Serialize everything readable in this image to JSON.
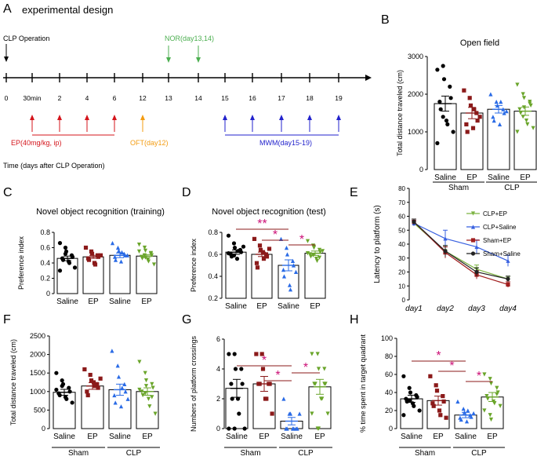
{
  "colors": {
    "red": "#d4141b",
    "orange": "#f39c12",
    "green_arrow": "#4caf50",
    "blue": "#2222cc",
    "maroon": "#8b1a1a",
    "black": "#000000",
    "tri_blue": "#2a6be6",
    "tri_green": "#6aa52b",
    "star": "#cc1177",
    "line_blue": "#3860e0",
    "line_green": "#7cb342",
    "line_red": "#a11f1f",
    "line_black": "#222222"
  },
  "panels": {
    "A": {
      "letter": "A",
      "title": "experimental design",
      "clp_label": "CLP Operation",
      "nor_label": "NOR(day13,14)",
      "ep_label": "EP(40mg/kg, ip)",
      "oft_label": "OFT(day12)",
      "mwm_label": "MWM(day15-19)",
      "axis_note": "Time (days after CLP Operation)",
      "ticks": [
        "0",
        "30min",
        "2",
        "4",
        "6",
        "12",
        "13",
        "14",
        "15",
        "16",
        "17",
        "18",
        "19"
      ],
      "ep_ticks": [
        "30min",
        "2",
        "4",
        "6"
      ],
      "oft_ticks": [
        "12"
      ],
      "nor_ticks": [
        "13",
        "14"
      ],
      "mwm_ticks": [
        "15",
        "16",
        "17",
        "18",
        "19"
      ]
    },
    "B": {
      "letter": "B"
    },
    "C": {
      "letter": "C"
    },
    "D": {
      "letter": "D"
    },
    "E": {
      "letter": "E"
    },
    "F": {
      "letter": "F"
    },
    "G": {
      "letter": "G"
    },
    "H": {
      "letter": "H"
    }
  },
  "chart_data": [
    {
      "panel": "B",
      "type": "bar",
      "title": "Open field",
      "ylabel": "Total distance traveled (cm)",
      "ylim": [
        0,
        3000
      ],
      "yticks": [
        0,
        1000,
        2000,
        3000
      ],
      "categories": [
        "Saline",
        "EP",
        "Saline",
        "EP"
      ],
      "groups": [
        "Sham",
        "CLP"
      ],
      "values": [
        1750,
        1500,
        1600,
        1550
      ],
      "errors": [
        200,
        150,
        100,
        110
      ],
      "points": [
        [
          2650,
          2750,
          2400,
          2200,
          1900,
          1800,
          1600,
          1300,
          1200,
          1000,
          700,
          1400
        ],
        [
          2100,
          1900,
          1700,
          1500,
          1300,
          1200,
          1000,
          1100,
          1600,
          1400
        ],
        [
          2000,
          1800,
          1700,
          1600,
          1500,
          1400,
          1300,
          1200,
          1800,
          1550
        ],
        [
          2250,
          2000,
          1900,
          1800,
          1700,
          1600,
          1500,
          1300,
          1200,
          1100,
          1000,
          1400,
          1650,
          1750
        ]
      ]
    },
    {
      "panel": "C",
      "type": "bar",
      "title": "Novel object recognition (training)",
      "ylabel": "Preference index",
      "ylim": [
        0,
        0.8
      ],
      "yticks": [
        0,
        0.2,
        0.4,
        0.6,
        0.8
      ],
      "categories": [
        "Saline",
        "EP",
        "Saline",
        "EP"
      ],
      "values": [
        0.46,
        0.48,
        0.5,
        0.49
      ],
      "errors": [
        0.03,
        0.02,
        0.03,
        0.02
      ],
      "points": [
        [
          0.66,
          0.6,
          0.55,
          0.5,
          0.48,
          0.46,
          0.44,
          0.42,
          0.4,
          0.34,
          0.3,
          0.52
        ],
        [
          0.6,
          0.55,
          0.52,
          0.5,
          0.48,
          0.46,
          0.44,
          0.4,
          0.38,
          0.5
        ],
        [
          0.66,
          0.6,
          0.56,
          0.52,
          0.5,
          0.48,
          0.44,
          0.42,
          0.54,
          0.5
        ],
        [
          0.64,
          0.6,
          0.56,
          0.52,
          0.5,
          0.48,
          0.46,
          0.44,
          0.42,
          0.38,
          0.55,
          0.5,
          0.47,
          0.53
        ]
      ]
    },
    {
      "panel": "D",
      "type": "bar",
      "title": "Novel object recognition (test)",
      "ylabel": "Preference index",
      "ylim": [
        0.2,
        0.8
      ],
      "yticks": [
        0.2,
        0.4,
        0.6,
        0.8
      ],
      "categories": [
        "Saline",
        "EP",
        "Saline",
        "EP"
      ],
      "values": [
        0.62,
        0.6,
        0.5,
        0.61
      ],
      "errors": [
        0.02,
        0.02,
        0.05,
        0.02
      ],
      "points": [
        [
          0.77,
          0.7,
          0.66,
          0.64,
          0.62,
          0.6,
          0.58,
          0.56,
          0.63,
          0.67,
          0.61,
          0.59
        ],
        [
          0.74,
          0.68,
          0.64,
          0.6,
          0.58,
          0.52,
          0.48,
          0.62,
          0.56,
          0.65
        ],
        [
          0.74,
          0.66,
          0.6,
          0.54,
          0.5,
          0.46,
          0.4,
          0.32,
          0.28,
          0.44
        ],
        [
          0.72,
          0.68,
          0.66,
          0.64,
          0.62,
          0.6,
          0.58,
          0.56,
          0.54,
          0.63,
          0.61,
          0.59,
          0.67,
          0.57
        ]
      ],
      "significance": [
        "**",
        "*",
        "*"
      ]
    },
    {
      "panel": "E",
      "type": "line",
      "ylabel": "Latency to platform (s)",
      "ylim": [
        0,
        80
      ],
      "yticks": [
        0,
        10,
        20,
        30,
        40,
        50,
        60,
        70,
        80
      ],
      "x": [
        "day1",
        "day2",
        "day3",
        "day4"
      ],
      "series": [
        {
          "name": "CLP+EP",
          "values": [
            55,
            35,
            22,
            15
          ],
          "errors": [
            2,
            4,
            3,
            2
          ]
        },
        {
          "name": "CLP+Saline",
          "values": [
            55,
            44,
            38,
            28
          ],
          "errors": [
            2,
            6,
            5,
            4
          ]
        },
        {
          "name": "Sham+EP",
          "values": [
            56,
            34,
            18,
            11
          ],
          "errors": [
            2,
            4,
            3,
            2
          ]
        },
        {
          "name": "Sham+Saline",
          "values": [
            56,
            35,
            20,
            15
          ],
          "errors": [
            2,
            4,
            3,
            2
          ]
        }
      ]
    },
    {
      "panel": "F",
      "type": "bar",
      "ylabel": "Total distance traveled (cm)",
      "ylim": [
        0,
        2500
      ],
      "yticks": [
        0,
        500,
        1000,
        1500,
        2000,
        2500
      ],
      "categories": [
        "Saline",
        "EP",
        "Saline",
        "EP"
      ],
      "groups": [
        "Sham",
        "CLP"
      ],
      "values": [
        980,
        1150,
        1050,
        1000
      ],
      "errors": [
        80,
        90,
        150,
        100
      ],
      "points": [
        [
          1500,
          1300,
          1200,
          1100,
          1000,
          950,
          900,
          850,
          800,
          700,
          1050,
          1150
        ],
        [
          1600,
          1450,
          1300,
          1200,
          1100,
          1000,
          900,
          1250,
          1150,
          1350
        ],
        [
          2100,
          1700,
          1400,
          1200,
          1000,
          900,
          700,
          600,
          1100,
          800
        ],
        [
          1800,
          1500,
          1300,
          1200,
          1100,
          1000,
          900,
          800,
          600,
          400,
          1050,
          950,
          1150,
          850
        ]
      ]
    },
    {
      "panel": "G",
      "type": "bar",
      "ylabel": "Numbers of platform crossings",
      "ylim": [
        0,
        6
      ],
      "yticks": [
        0,
        2,
        4,
        6
      ],
      "categories": [
        "Saline",
        "EP",
        "Saline",
        "EP"
      ],
      "groups": [
        "Sham",
        "CLP"
      ],
      "values": [
        2.7,
        3.0,
        0.5,
        2.8
      ],
      "errors": [
        0.6,
        0.5,
        0.25,
        0.5
      ],
      "points": [
        [
          5,
          5,
          4,
          4,
          3,
          3,
          2,
          2,
          1,
          0,
          0,
          0
        ],
        [
          5,
          5,
          4,
          3,
          3,
          3,
          3,
          2,
          2,
          1
        ],
        [
          2,
          1,
          1,
          0,
          0,
          0,
          0,
          0,
          0,
          1
        ],
        [
          5,
          5,
          4,
          4,
          3,
          3,
          3,
          2,
          2,
          1,
          1,
          0,
          0,
          3
        ]
      ],
      "significance": [
        "*",
        "*",
        "*"
      ]
    },
    {
      "panel": "H",
      "type": "bar",
      "ylabel": "% time spent in target quadrant",
      "ylim": [
        0,
        100
      ],
      "yticks": [
        0,
        20,
        40,
        60,
        80,
        100
      ],
      "categories": [
        "Saline",
        "EP",
        "Saline",
        "EP"
      ],
      "groups": [
        "Sham",
        "CLP"
      ],
      "values": [
        33,
        31,
        15,
        35
      ],
      "errors": [
        4,
        5,
        3,
        5
      ],
      "points": [
        [
          58,
          45,
          40,
          37,
          35,
          33,
          30,
          28,
          25,
          20,
          15,
          31
        ],
        [
          58,
          48,
          42,
          36,
          30,
          28,
          25,
          20,
          15,
          12
        ],
        [
          30,
          22,
          18,
          15,
          13,
          12,
          10,
          8,
          20,
          17
        ],
        [
          60,
          55,
          50,
          45,
          40,
          36,
          33,
          30,
          28,
          25,
          20,
          15,
          10,
          38
        ]
      ],
      "significance": [
        "*",
        "*",
        "*"
      ]
    }
  ]
}
